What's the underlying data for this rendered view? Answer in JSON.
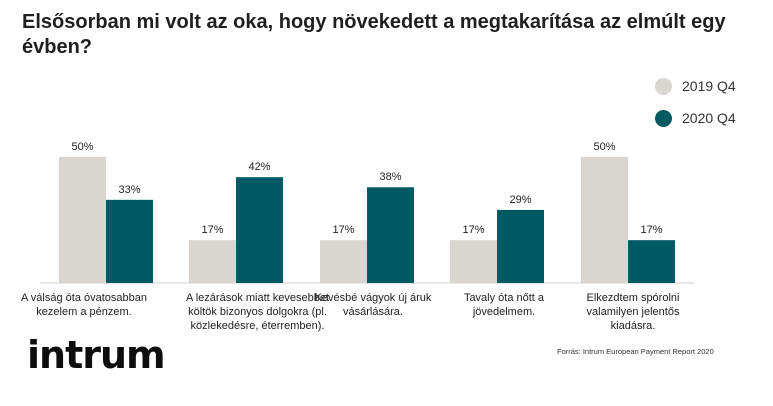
{
  "chart_data": {
    "type": "bar",
    "title": "Elsősorban mi volt az oka, hogy növekedett a megtakarítása az elmúlt egy évben?",
    "categories": [
      "A válság óta óvatosabban kezelem a pénzem.",
      "A lezárások miatt kevesebbet költök bizonyos dolgokra (pl. közlekedésre, éterremben).",
      "Kevésbé vágyok új áruk vásárlására.",
      "Tavaly óta nőtt a jövedelmem.",
      "Elkezdtem spórolni valamilyen jelentős kiadásra."
    ],
    "series": [
      {
        "name": "2019 Q4",
        "color": "#d9d5d0",
        "values": [
          50,
          17,
          17,
          17,
          50
        ]
      },
      {
        "name": "2020 Q4",
        "color": "#005a63",
        "values": [
          33,
          42,
          38,
          29,
          17
        ]
      }
    ],
    "value_suffix": "%",
    "ylim": [
      0,
      50
    ],
    "legend_position": "top-right",
    "grid": false
  },
  "source": "Forrás: Intrum European Payment Report 2020",
  "logo_text": "intrum"
}
